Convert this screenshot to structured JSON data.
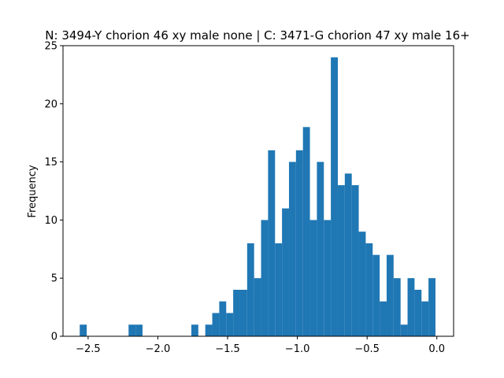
{
  "chart_data": {
    "type": "histogram",
    "title": "N: 3494-Y chorion 46 xy male none | C: 3471-G chorion 47 xy male 16+",
    "xlabel": "",
    "ylabel": "Frequency",
    "xlim": [
      -2.68,
      0.12
    ],
    "ylim": [
      0,
      25
    ],
    "bar_color": "#1f77b4",
    "bin_width": 0.05,
    "x_ticks": [
      -2.5,
      -2.0,
      -1.5,
      -1.0,
      -0.5,
      0.0
    ],
    "x_tick_labels": [
      "−2.5",
      "−2.0",
      "−1.5",
      "−1.0",
      "−0.5",
      "0.0"
    ],
    "y_ticks": [
      0,
      5,
      10,
      15,
      20,
      25
    ],
    "y_tick_labels": [
      "0",
      "5",
      "10",
      "15",
      "20",
      "25"
    ],
    "bins": [
      {
        "x0": -2.56,
        "count": 1
      },
      {
        "x0": -2.21,
        "count": 1
      },
      {
        "x0": -2.16,
        "count": 1
      },
      {
        "x0": -1.76,
        "count": 1
      },
      {
        "x0": -1.66,
        "count": 1
      },
      {
        "x0": -1.61,
        "count": 2
      },
      {
        "x0": -1.56,
        "count": 3
      },
      {
        "x0": -1.51,
        "count": 2
      },
      {
        "x0": -1.46,
        "count": 4
      },
      {
        "x0": -1.41,
        "count": 4
      },
      {
        "x0": -1.36,
        "count": 8
      },
      {
        "x0": -1.31,
        "count": 5
      },
      {
        "x0": -1.26,
        "count": 10
      },
      {
        "x0": -1.21,
        "count": 16
      },
      {
        "x0": -1.16,
        "count": 8
      },
      {
        "x0": -1.11,
        "count": 11
      },
      {
        "x0": -1.06,
        "count": 15
      },
      {
        "x0": -1.01,
        "count": 16
      },
      {
        "x0": -0.96,
        "count": 18
      },
      {
        "x0": -0.91,
        "count": 10
      },
      {
        "x0": -0.86,
        "count": 15
      },
      {
        "x0": -0.81,
        "count": 10
      },
      {
        "x0": -0.76,
        "count": 24
      },
      {
        "x0": -0.71,
        "count": 13
      },
      {
        "x0": -0.66,
        "count": 14
      },
      {
        "x0": -0.61,
        "count": 13
      },
      {
        "x0": -0.56,
        "count": 9
      },
      {
        "x0": -0.51,
        "count": 8
      },
      {
        "x0": -0.46,
        "count": 7
      },
      {
        "x0": -0.41,
        "count": 3
      },
      {
        "x0": -0.36,
        "count": 7
      },
      {
        "x0": -0.31,
        "count": 5
      },
      {
        "x0": -0.26,
        "count": 1
      },
      {
        "x0": -0.21,
        "count": 5
      },
      {
        "x0": -0.16,
        "count": 4
      },
      {
        "x0": -0.11,
        "count": 3
      },
      {
        "x0": -0.06,
        "count": 5
      }
    ],
    "grid": false,
    "legend": "none"
  }
}
